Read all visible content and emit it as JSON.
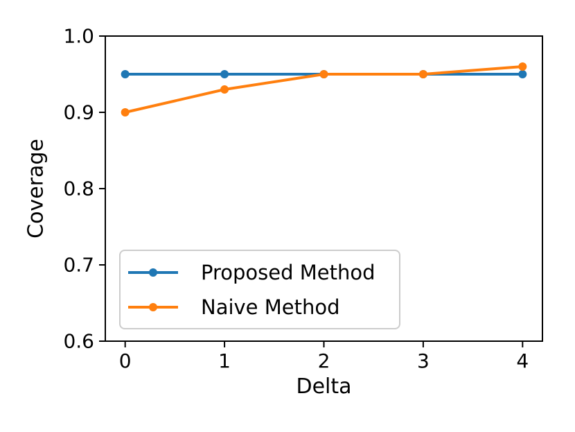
{
  "chart_data": {
    "type": "line",
    "title": "",
    "xlabel": "Delta",
    "ylabel": "Coverage",
    "x": [
      0,
      1,
      2,
      3,
      4
    ],
    "series": [
      {
        "name": "Proposed Method",
        "color": "#1f77b4",
        "marker": "circle",
        "values": [
          0.95,
          0.95,
          0.95,
          0.95,
          0.95
        ]
      },
      {
        "name": "Naive Method",
        "color": "#ff7f0e",
        "marker": "circle",
        "values": [
          0.9,
          0.93,
          0.95,
          0.95,
          0.96
        ]
      }
    ],
    "xlim": [
      -0.2,
      4.2
    ],
    "ylim": [
      0.6,
      1.0
    ],
    "xticks": [
      0,
      1,
      2,
      3,
      4
    ],
    "xtick_labels": [
      "0",
      "1",
      "2",
      "3",
      "4"
    ],
    "yticks": [
      1.0,
      0.9,
      0.8,
      0.7,
      0.6
    ],
    "ytick_labels": [
      "1.0",
      "0.9",
      "0.8",
      "0.7",
      "0.6"
    ],
    "grid": false,
    "legend": {
      "position": "lower-left",
      "frame": true
    }
  },
  "style": {
    "background": "#ffffff",
    "axis_color": "#000000",
    "text_color": "#000000",
    "legend_border_color": "#cccccc",
    "series_colors": [
      "#1f77b4",
      "#ff7f0e"
    ]
  }
}
